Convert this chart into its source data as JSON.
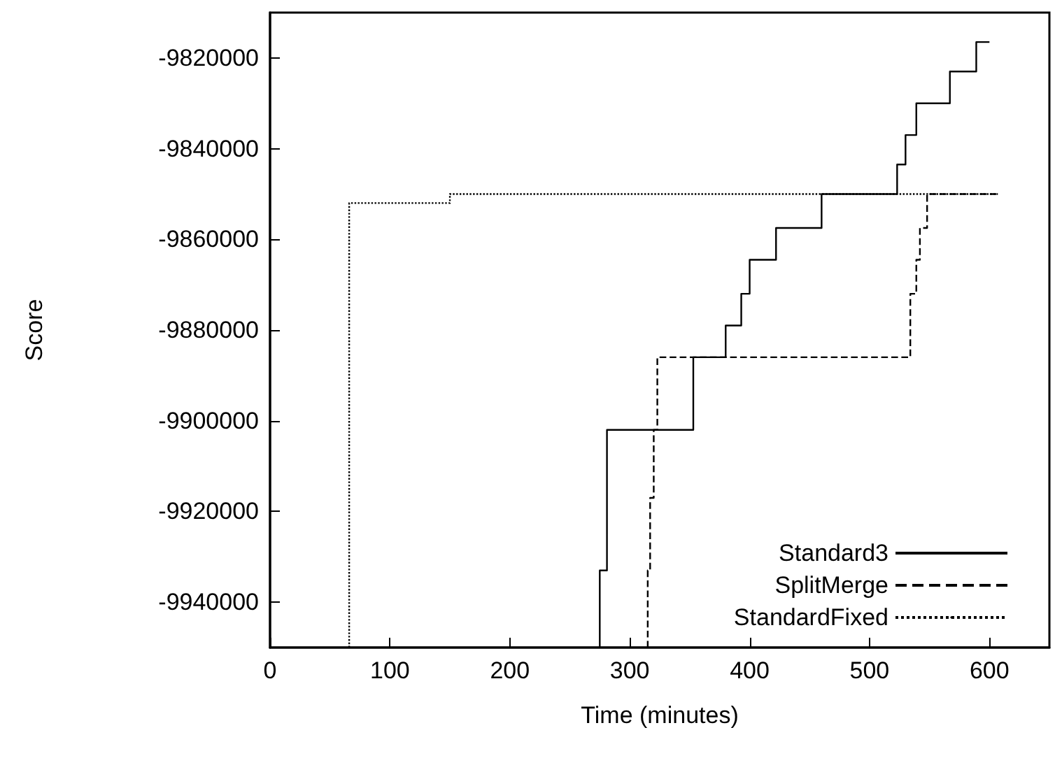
{
  "chart_data": {
    "type": "step",
    "xlabel": "Time (minutes)",
    "ylabel": "Score",
    "xlim": [
      0,
      650
    ],
    "xticks": [
      0,
      100,
      200,
      300,
      400,
      500,
      600
    ],
    "ylim": [
      -9950000,
      -9810000
    ],
    "yticks": [
      -9940000,
      -9920000,
      -9900000,
      -9880000,
      -9860000,
      -9840000,
      -9820000
    ],
    "grid": false,
    "legend": "bottom right",
    "marker": "none",
    "series": [
      {
        "name": "Standard3",
        "color": "#000000",
        "line_style": "solid",
        "x": [
          275,
          275,
          281,
          353,
          380,
          393,
          400,
          422,
          460,
          523,
          530,
          539,
          567,
          589,
          600
        ],
        "values": [
          -9950000,
          -9933000,
          -9902000,
          -9886000,
          -9879000,
          -9872000,
          -9864500,
          -9857500,
          -9850000,
          -9843500,
          -9837000,
          -9830000,
          -9823000,
          -9816500,
          -9816500
        ]
      },
      {
        "name": "SplitMerge",
        "color": "#000000",
        "line_style": "dashed",
        "x": [
          315,
          315,
          317,
          320,
          323,
          534,
          539,
          542,
          548,
          607
        ],
        "values": [
          -9950000,
          -9933000,
          -9917000,
          -9902000,
          -9886000,
          -9872000,
          -9864500,
          -9857500,
          -9850000,
          -9850000
        ]
      },
      {
        "name": "StandardFixed",
        "color": "#000000",
        "line_style": "dotted",
        "x": [
          66,
          66,
          150,
          607
        ],
        "values": [
          -9950000,
          -9852000,
          -9850000,
          -9850000
        ]
      }
    ]
  }
}
